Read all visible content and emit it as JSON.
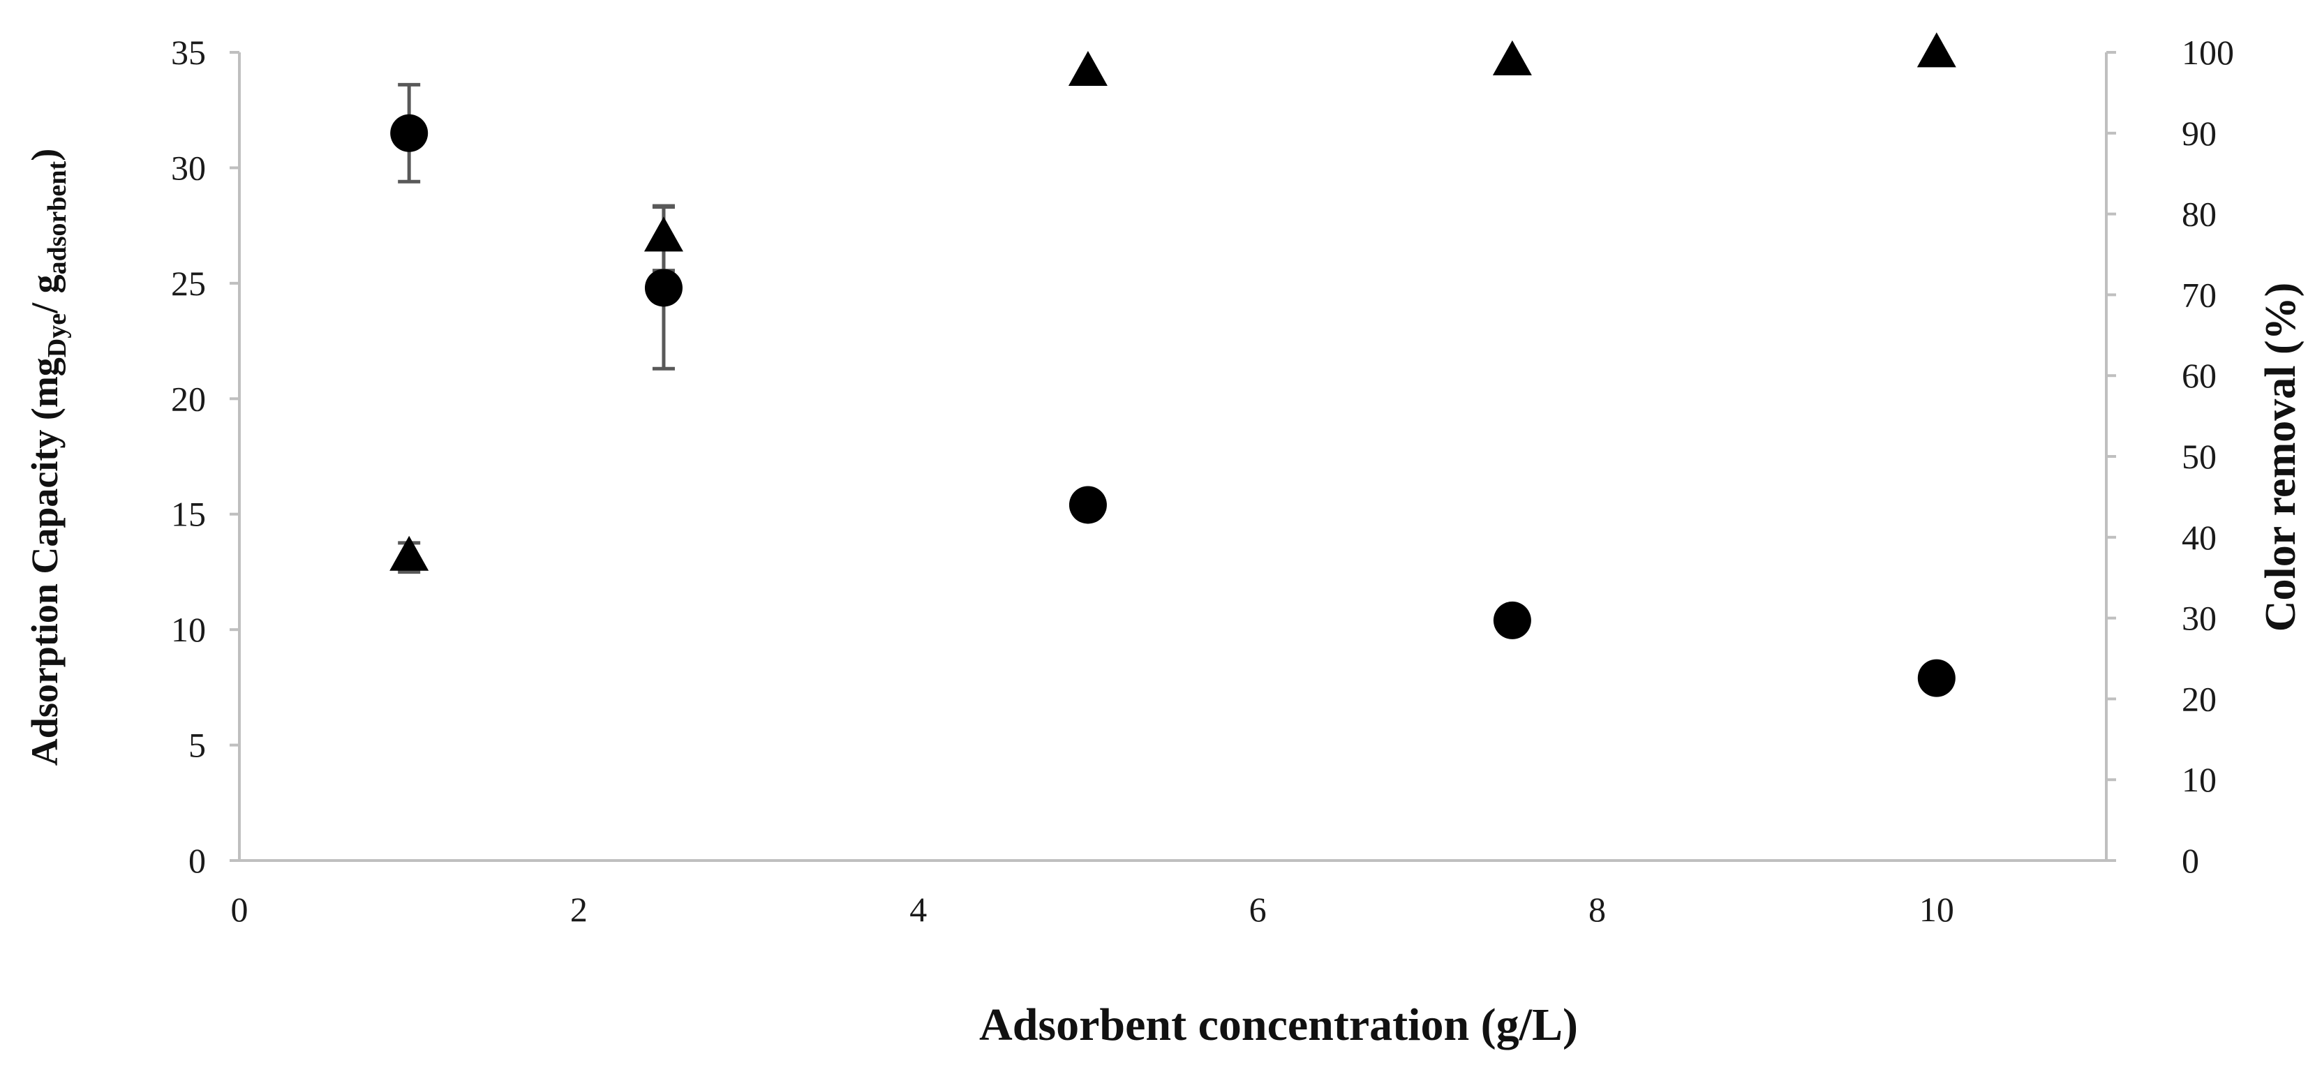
{
  "chart_data": {
    "type": "scatter",
    "xlabel": "Adsorbent concentration (g/L)",
    "ylabel": {
      "prefix": "Adsorption Capacity (mg",
      "sub1": "Dye",
      "mid": "/ g",
      "sub2": "adsorbent",
      "suffix": ")"
    },
    "y2label": "Color removal (%)",
    "xlim": [
      0,
      11
    ],
    "ylim": [
      0,
      35
    ],
    "y2lim": [
      0,
      100
    ],
    "x_ticks": [
      "0",
      "2",
      "4",
      "6",
      "8",
      "10"
    ],
    "y_ticks": [
      "0",
      "5",
      "10",
      "15",
      "20",
      "25",
      "30",
      "35"
    ],
    "y2_ticks": [
      "0",
      "10",
      "20",
      "30",
      "40",
      "50",
      "60",
      "70",
      "80",
      "90",
      "100"
    ],
    "grid": false,
    "series": [
      {
        "axis": "left",
        "marker": "circle",
        "color": "#000000",
        "points": [
          {
            "x": 1.0,
            "y": 31.5,
            "err": 2.1
          },
          {
            "x": 2.5,
            "y": 24.8,
            "err": 3.5
          },
          {
            "x": 5.0,
            "y": 15.4,
            "err": 0
          },
          {
            "x": 7.5,
            "y": 10.4,
            "err": 0
          },
          {
            "x": 10.0,
            "y": 7.9,
            "err": 0
          }
        ]
      },
      {
        "axis": "right",
        "marker": "triangle",
        "color": "#000000",
        "points": [
          {
            "x": 1.0,
            "y": 37.5,
            "err": 1.8
          },
          {
            "x": 2.5,
            "y": 77.0,
            "err": 4.0
          },
          {
            "x": 5.0,
            "y": 97.5,
            "err": 0
          },
          {
            "x": 7.5,
            "y": 98.8,
            "err": 0
          },
          {
            "x": 10.0,
            "y": 99.8,
            "err": 0
          }
        ]
      }
    ]
  }
}
